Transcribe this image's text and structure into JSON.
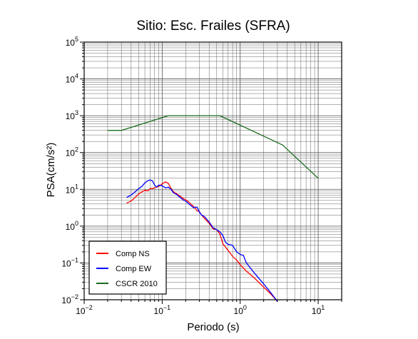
{
  "chart_data": {
    "type": "line",
    "title": "Sitio: Esc. Frailes (SFRA)",
    "xlabel": "Periodo (s)",
    "ylabel": "PSA(cm/s²)",
    "xscale": "log",
    "yscale": "log",
    "xlim": [
      0.01,
      20
    ],
    "ylim": [
      0.01,
      100000
    ],
    "grid": true,
    "legend_position": "bottom-left",
    "x_tick_labels": [
      {
        "base": "10",
        "exp": "−2"
      },
      {
        "base": "10",
        "exp": "−1"
      },
      {
        "base": "10",
        "exp": "0"
      },
      {
        "base": "10",
        "exp": "1"
      }
    ],
    "y_tick_labels": [
      {
        "base": "10",
        "exp": "−2"
      },
      {
        "base": "10",
        "exp": "−1"
      },
      {
        "base": "10",
        "exp": "0"
      },
      {
        "base": "10",
        "exp": "1"
      },
      {
        "base": "10",
        "exp": "2"
      },
      {
        "base": "10",
        "exp": "3"
      },
      {
        "base": "10",
        "exp": "4"
      },
      {
        "base": "10",
        "exp": "5"
      }
    ],
    "series": [
      {
        "name": "Comp NS",
        "color": "#ff0000",
        "x": [
          0.035,
          0.04,
          0.045,
          0.05,
          0.055,
          0.06,
          0.065,
          0.07,
          0.075,
          0.08,
          0.09,
          0.1,
          0.11,
          0.12,
          0.13,
          0.14,
          0.15,
          0.17,
          0.19,
          0.2,
          0.22,
          0.25,
          0.28,
          0.3,
          0.32,
          0.35,
          0.4,
          0.45,
          0.5,
          0.55,
          0.6,
          0.7,
          0.8,
          0.9,
          1.0,
          1.2,
          1.5,
          2.0,
          2.5,
          3.0
        ],
        "y": [
          4.2,
          4.8,
          6.0,
          7.5,
          8.5,
          9.5,
          9.0,
          10.5,
          10.5,
          11.0,
          12.0,
          14.0,
          16.0,
          14.5,
          10.5,
          8.5,
          7.8,
          6.5,
          5.5,
          5.2,
          4.5,
          3.5,
          2.6,
          2.5,
          2.0,
          1.6,
          1.2,
          0.85,
          0.8,
          0.6,
          0.33,
          0.22,
          0.15,
          0.12,
          0.09,
          0.06,
          0.04,
          0.022,
          0.014,
          0.009
        ]
      },
      {
        "name": "Comp EW",
        "color": "#0000ff",
        "x": [
          0.035,
          0.04,
          0.045,
          0.05,
          0.055,
          0.06,
          0.065,
          0.07,
          0.075,
          0.08,
          0.085,
          0.09,
          0.1,
          0.11,
          0.12,
          0.13,
          0.14,
          0.15,
          0.17,
          0.19,
          0.2,
          0.22,
          0.25,
          0.28,
          0.3,
          0.32,
          0.35,
          0.4,
          0.45,
          0.5,
          0.55,
          0.6,
          0.65,
          0.7,
          0.8,
          0.9,
          1.0,
          1.1,
          1.2,
          1.5,
          2.0,
          2.5,
          3.0
        ],
        "y": [
          6.0,
          7.0,
          8.5,
          10.5,
          12.0,
          15.0,
          17.0,
          18.0,
          17.0,
          13.0,
          11.5,
          13.0,
          12.5,
          11.0,
          11.5,
          10.0,
          8.0,
          7.5,
          6.0,
          5.0,
          4.8,
          4.0,
          3.2,
          3.3,
          2.4,
          2.0,
          1.8,
          1.3,
          0.9,
          0.8,
          0.7,
          0.55,
          0.36,
          0.32,
          0.3,
          0.2,
          0.17,
          0.16,
          0.1,
          0.055,
          0.027,
          0.015,
          0.009
        ]
      },
      {
        "name": "CSCR 2010",
        "color": "#1a6b1a",
        "x": [
          0.02,
          0.03,
          0.12,
          0.5,
          0.55,
          3.5,
          10.0
        ],
        "y": [
          400,
          400,
          1000,
          1000,
          1000,
          160,
          20
        ]
      }
    ]
  }
}
